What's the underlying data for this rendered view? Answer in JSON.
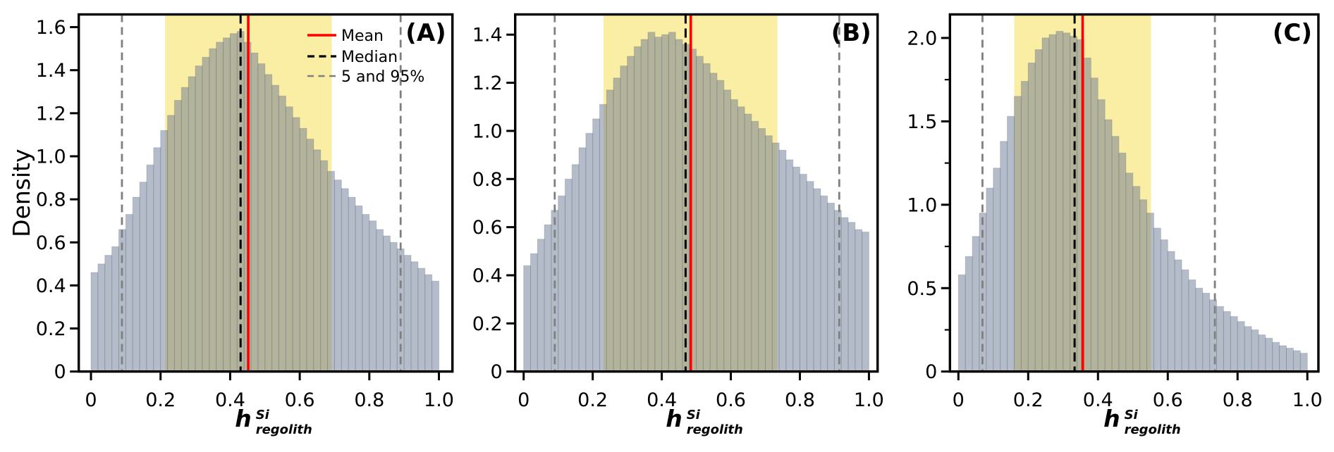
{
  "ylabel": "Density",
  "xlabel": {
    "base": "h",
    "superscript": "Si",
    "subscript": "regolith"
  },
  "legend": {
    "entries": [
      {
        "label": "Mean",
        "style": "solid-red"
      },
      {
        "label": "Median",
        "style": "dashed-black"
      },
      {
        "label": "5 and 95%",
        "style": "dashed-gray"
      }
    ]
  },
  "colors": {
    "bar_fill": "#6B7993",
    "bar_fill_alpha": 0.5,
    "bar_edge": "#465269",
    "band": "#FAEDA4",
    "mean": "#FF0000",
    "median": "#000000",
    "percentile": "#7F7F7F",
    "spine": "#000000"
  },
  "chart_data": [
    {
      "type": "bar",
      "id": "a",
      "panel_label": "(A)",
      "bin_start": 0,
      "bin_width": 0.02,
      "densities": [
        0.46,
        0.5,
        0.54,
        0.58,
        0.66,
        0.73,
        0.81,
        0.88,
        0.96,
        1.04,
        1.12,
        1.19,
        1.26,
        1.32,
        1.37,
        1.42,
        1.46,
        1.5,
        1.53,
        1.55,
        1.57,
        1.58,
        1.53,
        1.48,
        1.43,
        1.38,
        1.33,
        1.28,
        1.23,
        1.18,
        1.13,
        1.08,
        1.03,
        0.98,
        0.93,
        0.89,
        0.85,
        0.81,
        0.77,
        0.73,
        0.7,
        0.66,
        0.63,
        0.6,
        0.57,
        0.54,
        0.51,
        0.48,
        0.45,
        0.42
      ],
      "mean": 0.452,
      "median": 0.43,
      "p5": 0.089,
      "p95": 0.89,
      "band": [
        0.213,
        0.692
      ],
      "xlim": [
        -0.0351,
        1.0389
      ],
      "ylim": [
        0,
        1.659
      ],
      "yticks": [
        0,
        0.2,
        0.4,
        0.6,
        0.8,
        1.0,
        1.2,
        1.4,
        1.6
      ],
      "ytick_labels": [
        "0",
        "0.2",
        "0.4",
        "0.6",
        "0.8",
        "1.0",
        "1.2",
        "1.4",
        "1.6"
      ],
      "minor_yticks": [],
      "xticks": [
        0,
        0.2,
        0.4,
        0.6,
        0.8,
        1.0
      ],
      "xtick_labels": [
        "0",
        "0.2",
        "0.4",
        "0.6",
        "0.8",
        "1.0"
      ],
      "show_legend": true,
      "show_ylabel": true
    },
    {
      "type": "bar",
      "id": "b",
      "panel_label": "(B)",
      "bin_start": 0,
      "bin_width": 0.02,
      "densities": [
        0.44,
        0.49,
        0.55,
        0.61,
        0.67,
        0.73,
        0.8,
        0.86,
        0.93,
        0.99,
        1.05,
        1.11,
        1.17,
        1.22,
        1.27,
        1.31,
        1.35,
        1.38,
        1.41,
        1.39,
        1.4,
        1.41,
        1.38,
        1.36,
        1.34,
        1.31,
        1.28,
        1.24,
        1.21,
        1.17,
        1.13,
        1.1,
        1.07,
        1.04,
        1.01,
        0.98,
        0.95,
        0.92,
        0.88,
        0.85,
        0.82,
        0.79,
        0.76,
        0.73,
        0.7,
        0.67,
        0.64,
        0.62,
        0.59,
        0.58
      ],
      "mean": 0.484,
      "median": 0.469,
      "p5": 0.09,
      "p95": 0.914,
      "band": [
        0.231,
        0.735
      ],
      "xlim": [
        -0.0245,
        1.0251
      ],
      "ylim": [
        0,
        1.484
      ],
      "yticks": [
        0,
        0.2,
        0.4,
        0.6,
        0.8,
        1.0,
        1.2,
        1.4
      ],
      "ytick_labels": [
        "0",
        "0.2",
        "0.4",
        "0.6",
        "0.8",
        "1.0",
        "1.2",
        "1.4"
      ],
      "minor_yticks": [],
      "xticks": [
        0,
        0.2,
        0.4,
        0.6,
        0.8,
        1.0
      ],
      "xtick_labels": [
        "0",
        "0.2",
        "0.4",
        "0.6",
        "0.8",
        "1.0"
      ],
      "show_legend": false,
      "show_ylabel": false
    },
    {
      "type": "bar",
      "id": "c",
      "panel_label": "(C)",
      "bin_start": 0,
      "bin_width": 0.02,
      "densities": [
        0.58,
        0.69,
        0.81,
        0.95,
        1.1,
        1.22,
        1.38,
        1.53,
        1.65,
        1.74,
        1.85,
        1.93,
        2.0,
        2.02,
        2.04,
        2.03,
        2.01,
        1.99,
        1.88,
        1.76,
        1.63,
        1.51,
        1.41,
        1.31,
        1.19,
        1.11,
        1.03,
        0.95,
        0.86,
        0.79,
        0.72,
        0.67,
        0.61,
        0.55,
        0.5,
        0.47,
        0.43,
        0.39,
        0.36,
        0.33,
        0.3,
        0.27,
        0.25,
        0.22,
        0.2,
        0.175,
        0.155,
        0.14,
        0.125,
        0.11
      ],
      "mean": 0.356,
      "median": 0.333,
      "p5": 0.069,
      "p95": 0.735,
      "band": [
        0.16,
        0.552
      ],
      "xlim": [
        -0.0242,
        1.0317
      ],
      "ylim": [
        0,
        2.141
      ],
      "yticks": [
        0,
        0.5,
        1.0,
        1.5,
        2.0
      ],
      "ytick_labels": [
        "0",
        "0.5",
        "1.0",
        "1.5",
        "2.0"
      ],
      "minor_yticks": [
        0.25,
        0.75,
        1.25,
        1.75
      ],
      "xticks": [
        0,
        0.2,
        0.4,
        0.6,
        0.8,
        1.0
      ],
      "xtick_labels": [
        "0",
        "0.2",
        "0.4",
        "0.6",
        "0.8",
        "1.0"
      ],
      "show_legend": false,
      "show_ylabel": true
    }
  ]
}
